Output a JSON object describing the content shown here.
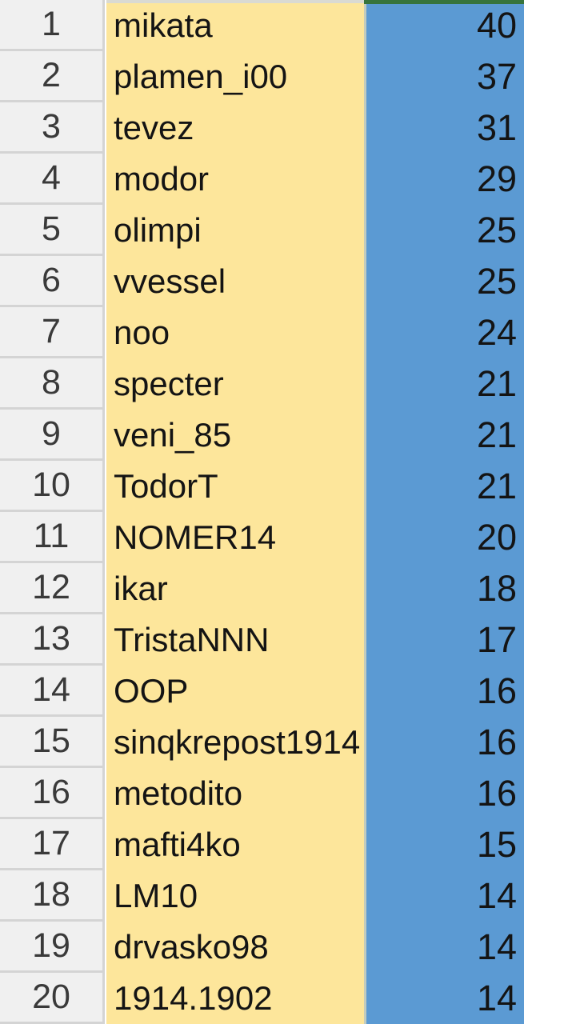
{
  "table": {
    "rows": [
      {
        "rank": "1",
        "player": "mikata",
        "score": "40"
      },
      {
        "rank": "2",
        "player": "plamen_i00",
        "score": "37"
      },
      {
        "rank": "3",
        "player": "tevez",
        "score": "31"
      },
      {
        "rank": "4",
        "player": "modor",
        "score": "29"
      },
      {
        "rank": "5",
        "player": "olimpi",
        "score": "25"
      },
      {
        "rank": "6",
        "player": "vvessel",
        "score": "25"
      },
      {
        "rank": "7",
        "player": "noo",
        "score": "24"
      },
      {
        "rank": "8",
        "player": "specter",
        "score": "21"
      },
      {
        "rank": "9",
        "player": "veni_85",
        "score": "21"
      },
      {
        "rank": "10",
        "player": "TodorT",
        "score": "21"
      },
      {
        "rank": "11",
        "player": "NOMER14",
        "score": "20"
      },
      {
        "rank": "12",
        "player": "ikar",
        "score": "18"
      },
      {
        "rank": "13",
        "player": "TristaNNN",
        "score": "17"
      },
      {
        "rank": "14",
        "player": "OOP",
        "score": "16"
      },
      {
        "rank": "15",
        "player": "sinqkrepost1914",
        "score": "16"
      },
      {
        "rank": "16",
        "player": "metodito",
        "score": "16"
      },
      {
        "rank": "17",
        "player": "mafti4ko",
        "score": "15"
      },
      {
        "rank": "18",
        "player": "LM10",
        "score": "14"
      },
      {
        "rank": "19",
        "player": "drvasko98",
        "score": "14"
      },
      {
        "rank": "20",
        "player": "1914.1902",
        "score": "14"
      }
    ]
  },
  "colors": {
    "rank_column_bg": "#f0f0f0",
    "rank_column_border": "#d4d4d4",
    "rank_text": "#3a3a3a",
    "player_column_bg": "#fde69b",
    "score_column_bg": "#5b9ad3",
    "column_divider": "#c3ccbe",
    "header_edge_green": "#37743c",
    "header_edge_gray": "#dadad2",
    "text": "#141414"
  }
}
